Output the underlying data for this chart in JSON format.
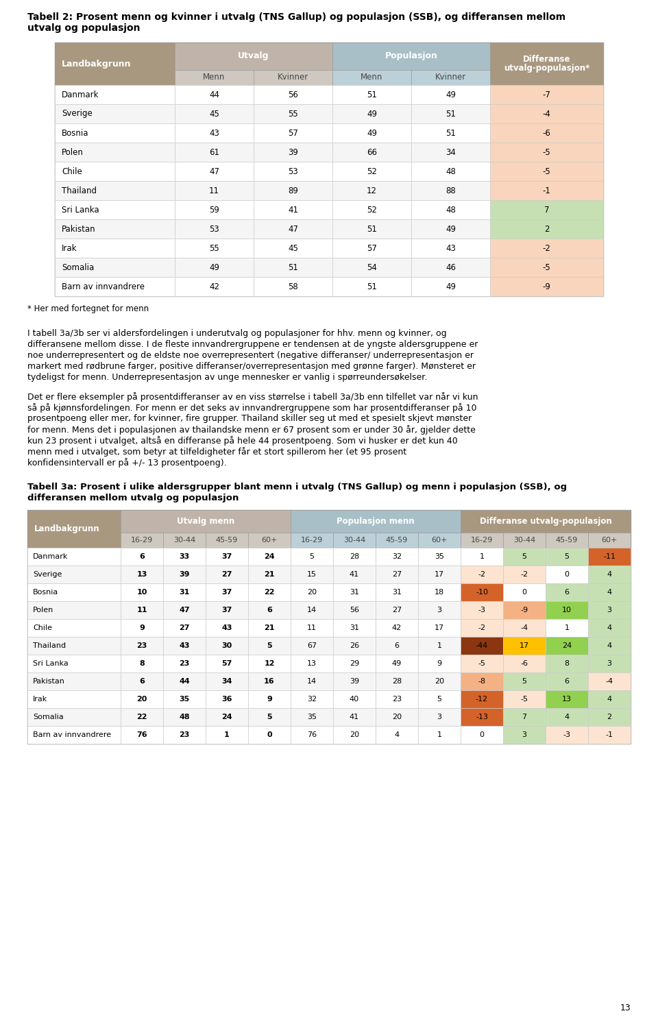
{
  "title1_line1": "Tabell 2: Prosent menn og kvinner i utvalg (TNS Gallup) og populasjon (SSB), og differansen mellom",
  "title1_line2": "utvalg og populasjon",
  "table1_rows": [
    [
      "Danmark",
      "44",
      "56",
      "51",
      "49",
      "-7"
    ],
    [
      "Sverige",
      "45",
      "55",
      "49",
      "51",
      "-4"
    ],
    [
      "Bosnia",
      "43",
      "57",
      "49",
      "51",
      "-6"
    ],
    [
      "Polen",
      "61",
      "39",
      "66",
      "34",
      "-5"
    ],
    [
      "Chile",
      "47",
      "53",
      "52",
      "48",
      "-5"
    ],
    [
      "Thailand",
      "11",
      "89",
      "12",
      "88",
      "-1"
    ],
    [
      "Sri Lanka",
      "59",
      "41",
      "52",
      "48",
      "7"
    ],
    [
      "Pakistan",
      "53",
      "47",
      "51",
      "49",
      "2"
    ],
    [
      "Irak",
      "55",
      "45",
      "57",
      "43",
      "-2"
    ],
    [
      "Somalia",
      "49",
      "51",
      "54",
      "46",
      "-5"
    ],
    [
      "Barn av innvandrere",
      "42",
      "58",
      "51",
      "49",
      "-9"
    ]
  ],
  "table1_diff_colors": [
    "#f8d5bc",
    "#f8d5bc",
    "#f8d5bc",
    "#f8d5bc",
    "#f8d5bc",
    "#f8d5bc",
    "#c6e0b4",
    "#c6e0b4",
    "#f8d5bc",
    "#f8d5bc",
    "#f8d5bc"
  ],
  "footnote": "* Her med fortegnet for menn",
  "paragraph1_lines": [
    "I tabell 3a/3b ser vi aldersfordelingen i underutvalg og populasjoner for hhv. menn og kvinner, og",
    "differansene mellom disse. I de fleste innvandrergruppene er tendensen at de yngste aldersgruppene er",
    "noe underrepresentert og de eldste noe overrepresentert (negative differanser/ underrepresentasjon er",
    "markert med rødbrune farger, positive differanser/overrepresentasjon med grønne farger). Mønsteret er",
    "tydeligst for menn. Underrepresentasjon av unge mennesker er vanlig i spørreundersøkelser."
  ],
  "paragraph2_lines": [
    "Det er flere eksempler på prosentdifferanser av en viss størrelse i tabell 3a/3b enn tilfellet var når vi kun",
    "så på kjønnsfordelingen. For menn er det seks av innvandrergruppene som har prosentdifferanser på 10",
    "prosentpoeng eller mer, for kvinner, fire grupper. Thailand skiller seg ut med et spesielt skjevt mønster",
    "for menn. Mens det i populasjonen av thailandske menn er 67 prosent som er under 30 år, gjelder dette",
    "kun 23 prosent i utvalget, altså en differanse på hele 44 prosentpoeng. Som vi husker er det kun 40",
    "menn med i utvalget, som betyr at tilfeldigheter får et stort spillerom her (et 95 prosent",
    "konfidensintervall er på +/- 13 prosentpoeng)."
  ],
  "title2_line1": "Tabell 3a: Prosent i ulike aldersgrupper blant menn i utvalg (TNS Gallup) og menn i populasjon (SSB), og",
  "title2_line2": "differansen mellom utvalg og populasjon",
  "table2_rows": [
    [
      "Danmark",
      "6",
      "33",
      "37",
      "24",
      "5",
      "28",
      "32",
      "35",
      "1",
      "5",
      "5",
      "-11"
    ],
    [
      "Sverige",
      "13",
      "39",
      "27",
      "21",
      "15",
      "41",
      "27",
      "17",
      "-2",
      "-2",
      "0",
      "4"
    ],
    [
      "Bosnia",
      "10",
      "31",
      "37",
      "22",
      "20",
      "31",
      "31",
      "18",
      "-10",
      "0",
      "6",
      "4"
    ],
    [
      "Polen",
      "11",
      "47",
      "37",
      "6",
      "14",
      "56",
      "27",
      "3",
      "-3",
      "-9",
      "10",
      "3"
    ],
    [
      "Chile",
      "9",
      "27",
      "43",
      "21",
      "11",
      "31",
      "42",
      "17",
      "-2",
      "-4",
      "1",
      "4"
    ],
    [
      "Thailand",
      "23",
      "43",
      "30",
      "5",
      "67",
      "26",
      "6",
      "1",
      "-44",
      "17",
      "24",
      "4"
    ],
    [
      "Sri Lanka",
      "8",
      "23",
      "57",
      "12",
      "13",
      "29",
      "49",
      "9",
      "-5",
      "-6",
      "8",
      "3"
    ],
    [
      "Pakistan",
      "6",
      "44",
      "34",
      "16",
      "14",
      "39",
      "28",
      "20",
      "-8",
      "5",
      "6",
      "-4"
    ],
    [
      "Irak",
      "20",
      "35",
      "36",
      "9",
      "32",
      "40",
      "23",
      "5",
      "-12",
      "-5",
      "13",
      "4"
    ],
    [
      "Somalia",
      "22",
      "48",
      "24",
      "5",
      "35",
      "41",
      "20",
      "3",
      "-13",
      "7",
      "4",
      "2"
    ],
    [
      "Barn av innvandrere",
      "76",
      "23",
      "1",
      "0",
      "76",
      "20",
      "4",
      "1",
      "0",
      "3",
      "-3",
      "-1"
    ]
  ],
  "page_number": "13",
  "landbakgrunn_header_color": "#a89880",
  "utvalg_header_color": "#c0b4aa",
  "populasjon_header_color": "#a8bfc8",
  "differanse_header_color": "#a89880",
  "utvalg_subheader_color": "#cec8c0",
  "populasjon_subheader_color": "#bcd0d8",
  "differanse_subheader_color": "#cec8c0",
  "row_white": "#ffffff",
  "row_alt": "#f5f5f5",
  "diff_light_orange": "#fce4d0",
  "diff_light_green": "#c6e0b4",
  "diff_med_orange": "#f4b183",
  "diff_dark_orange": "#d4632a",
  "diff_darkest_orange": "#8b3610",
  "diff_med_green": "#92d050",
  "diff_dark_green": "#70ad47",
  "diff_yellow_orange": "#ffc000",
  "diff_white": "#ffffff"
}
